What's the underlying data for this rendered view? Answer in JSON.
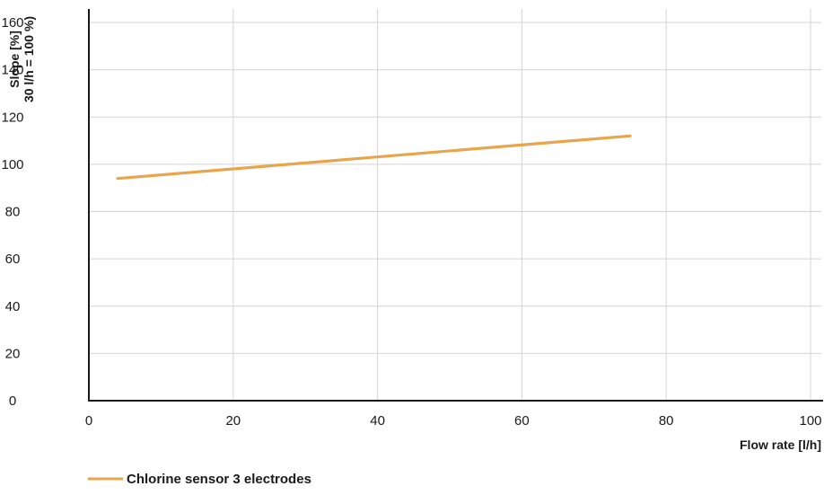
{
  "chart_data": {
    "type": "line",
    "title": "",
    "xlabel": "Flow rate [l/h]",
    "ylabel": [
      "Slope [%]",
      "30 l/h = 100 %)"
    ],
    "xlim": [
      0,
      100
    ],
    "ylim": [
      0,
      160
    ],
    "x_ticks": [
      0,
      20,
      40,
      60,
      80,
      100
    ],
    "y_ticks": [
      0,
      20,
      40,
      60,
      80,
      100,
      120,
      140,
      160
    ],
    "grid": true,
    "legend_position": "bottom-left",
    "series": [
      {
        "name": "Chlorine sensor 3 electrodes",
        "color": "#E8A54B",
        "x": [
          4,
          75
        ],
        "y": [
          94,
          112
        ]
      }
    ]
  }
}
